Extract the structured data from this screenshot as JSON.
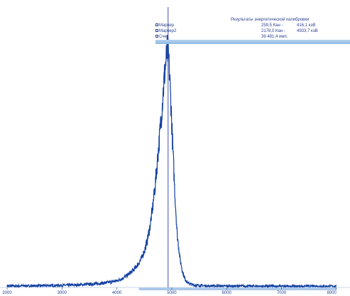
{
  "colors": {
    "series": "#1240a0",
    "cursor": "#4050b0",
    "info_text": "#2a3f8f",
    "info_bar": "#a8c8ea",
    "axis_highlight": "#a8c8ea"
  },
  "info_panel": {
    "title": "Результаты энергетической калибровки",
    "rows": [
      {
        "label": "Маркер",
        "channel": "259,5 Кан -",
        "energy": "416,1 кэВ"
      },
      {
        "label": "Маркер2",
        "channel": "2178,0 Кан -",
        "energy": "4933,7 кэВ"
      },
      {
        "label": "Счет",
        "channel": "39 481,4 имп.",
        "energy": ""
      }
    ]
  },
  "chart_data": {
    "type": "line",
    "title": "",
    "xlabel": "",
    "ylabel": "",
    "xlim": [
      2000,
      8000
    ],
    "ylim": [
      0,
      1
    ],
    "x_ticks": [
      2000,
      3000,
      4000,
      5000,
      6000,
      7000,
      8000
    ],
    "x_tick_labels": [
      "2000",
      "3000",
      "4000",
      "5000",
      "6000",
      "7000",
      "8000"
    ],
    "cursor_x": 4933.7,
    "highlight_range": [
      4400,
      8000
    ],
    "grid": false,
    "series": [
      {
        "x": [
          2000,
          2500,
          3000,
          3300,
          3600,
          3800,
          4000,
          4100,
          4200,
          4300,
          4400,
          4450,
          4500,
          4550,
          4600,
          4650,
          4700,
          4750,
          4800,
          4830,
          4860,
          4880,
          4900,
          4920,
          4940,
          4960,
          4980,
          5000,
          5030,
          5060,
          5100,
          5150,
          5200,
          5250,
          5300,
          5400,
          5600,
          6000,
          7000,
          8000
        ],
        "y": [
          0.003,
          0.004,
          0.006,
          0.008,
          0.012,
          0.017,
          0.025,
          0.035,
          0.05,
          0.07,
          0.1,
          0.12,
          0.15,
          0.19,
          0.25,
          0.33,
          0.43,
          0.56,
          0.69,
          0.78,
          0.87,
          0.92,
          0.96,
          1.0,
          0.97,
          0.9,
          0.8,
          0.69,
          0.53,
          0.38,
          0.22,
          0.12,
          0.06,
          0.03,
          0.015,
          0.007,
          0.004,
          0.003,
          0.002,
          0.002
        ]
      }
    ]
  }
}
